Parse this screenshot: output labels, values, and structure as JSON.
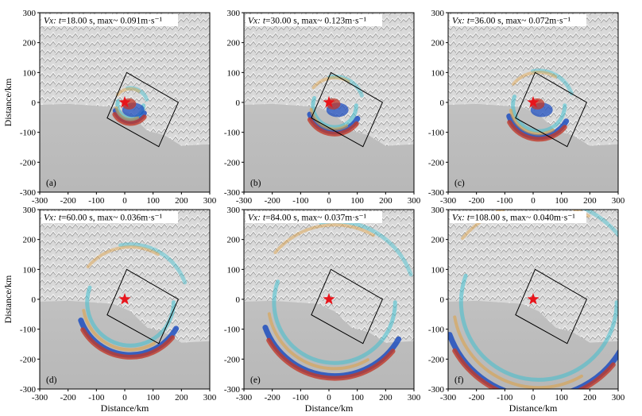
{
  "chart_data": {
    "type": "heatmap",
    "xlabel": "Distance/km",
    "ylabel": "Distance/km",
    "xlim": [
      -300,
      300
    ],
    "ylim": [
      -300,
      300
    ],
    "xticks": [
      "-300",
      "-200",
      "-100",
      "0",
      "100",
      "200",
      "300"
    ],
    "yticks": [
      "300",
      "200",
      "100",
      "0",
      "-100",
      "-200",
      "-300"
    ],
    "source_marker": {
      "x": 0,
      "y": 0,
      "shape": "red star"
    },
    "fault_box": [
      [
        -62,
        -52
      ],
      [
        7,
        100
      ],
      [
        189,
        0
      ],
      [
        120,
        -148
      ]
    ],
    "colors": {
      "positive": "#c0392b",
      "negative": "#1f4fbf",
      "positive_weak": "#e0a040",
      "negative_weak": "#40c0d0"
    },
    "panels": [
      {
        "label": "(a)",
        "title_var": "Vx:",
        "title_t": "t",
        "title_rest": "=18.00 s, max~ 0.091m·s⁻¹",
        "time_s": 18.0,
        "max": 0.091
      },
      {
        "label": "(b)",
        "title_var": "Vx:",
        "title_t": "t",
        "title_rest": "=30.00 s, max~ 0.123m·s⁻¹",
        "time_s": 30.0,
        "max": 0.123
      },
      {
        "label": "(c)",
        "title_var": "Vx:",
        "title_t": "t",
        "title_rest": "=36.00 s, max~ 0.072m·s⁻¹",
        "time_s": 36.0,
        "max": 0.072
      },
      {
        "label": "(d)",
        "title_var": "Vx:",
        "title_t": "t",
        "title_rest": "=60.00 s, max~ 0.036m·s⁻¹",
        "time_s": 60.0,
        "max": 0.036
      },
      {
        "label": "(e)",
        "title_var": "Vx:",
        "title_t": "t",
        "title_rest": "=84.00 s, max~ 0.037m·s⁻¹",
        "time_s": 84.0,
        "max": 0.037
      },
      {
        "label": "(f)",
        "title_var": "Vx:",
        "title_t": "t",
        "title_rest": "=108.00 s, max~ 0.040m·s⁻¹",
        "time_s": 108.0,
        "max": 0.04
      }
    ]
  }
}
